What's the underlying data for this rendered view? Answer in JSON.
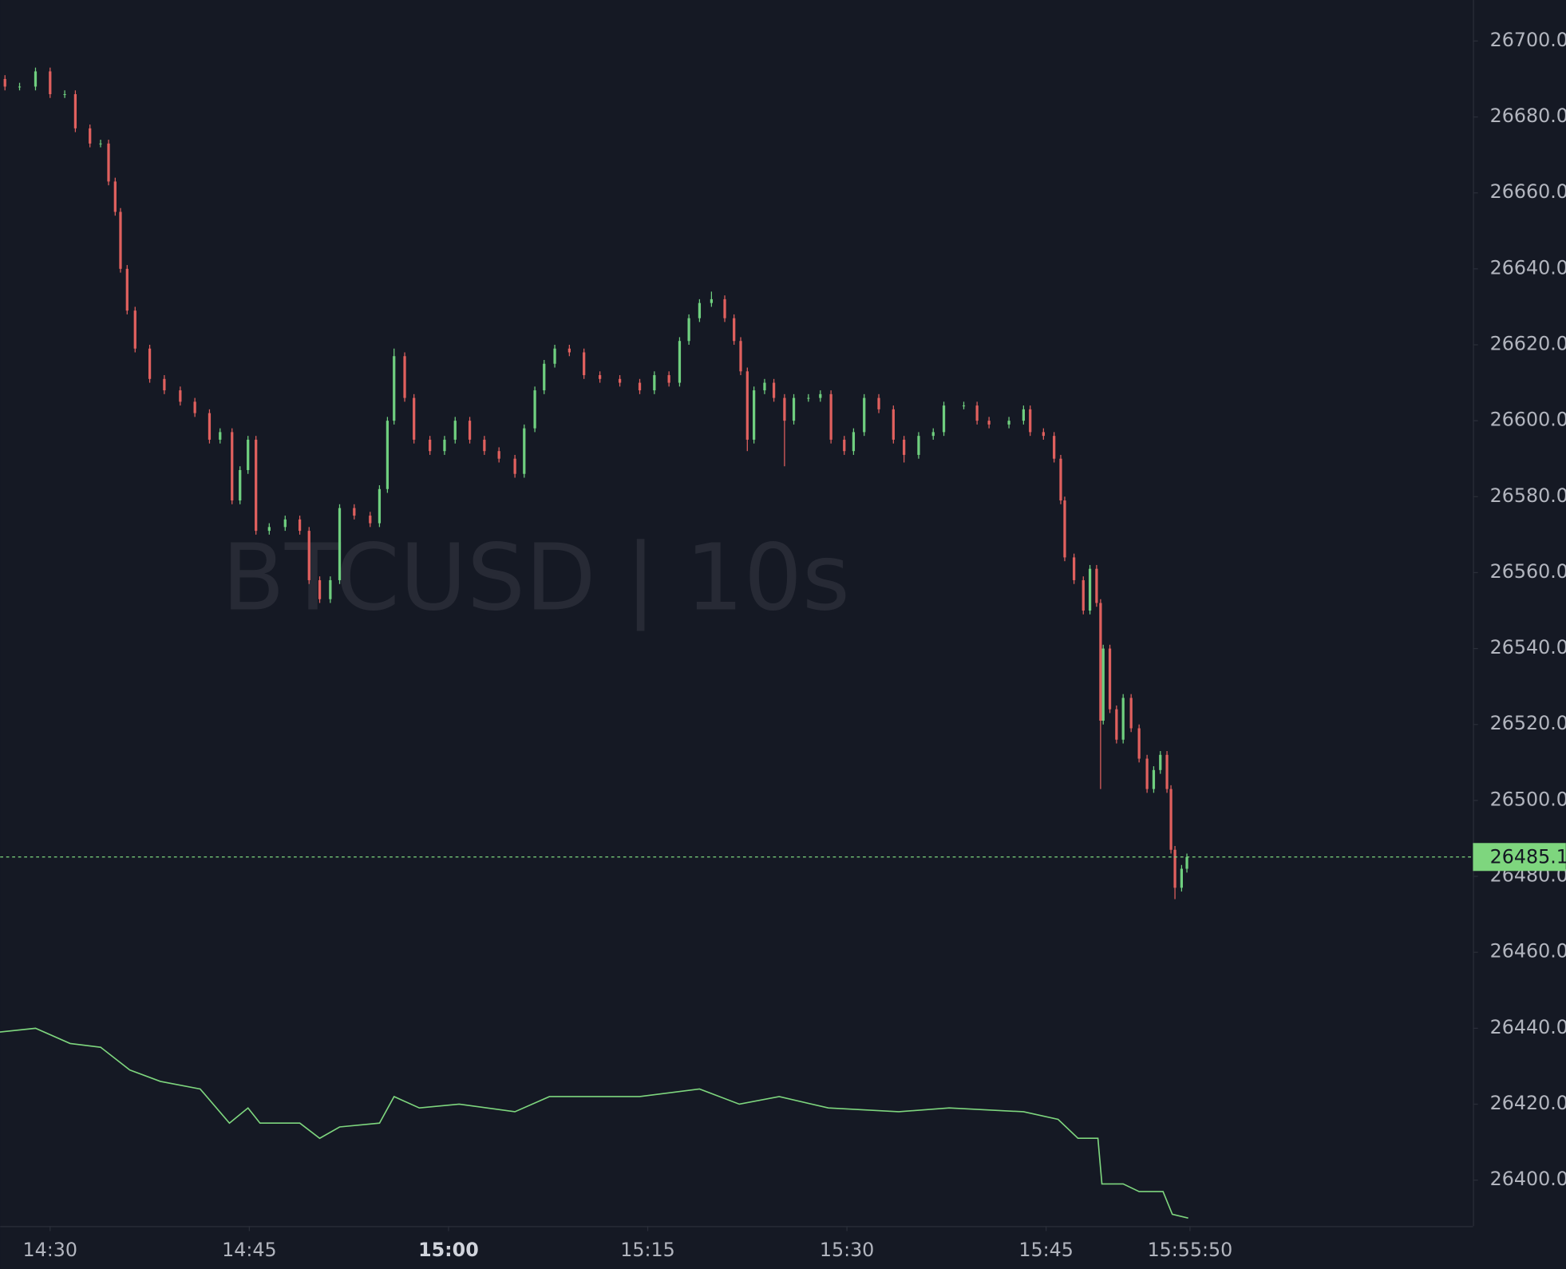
{
  "chart_data": {
    "type": "candlestick",
    "watermark": "BTCUSD | 10s",
    "up_color": "#6fcf7f",
    "down_color": "#e0605e",
    "x": [
      866.6,
      867.7,
      868.9,
      870.0,
      871.1,
      871.9,
      873.0,
      873.8,
      874.4,
      874.9,
      875.3,
      875.8,
      876.4,
      877.5,
      878.6,
      879.8,
      880.9,
      882.0,
      882.8,
      883.7,
      884.3,
      884.9,
      885.5,
      886.5,
      887.7,
      888.8,
      889.5,
      890.3,
      891.1,
      891.8,
      892.9,
      894.1,
      894.8,
      895.4,
      895.9,
      896.7,
      897.4,
      898.6,
      899.7,
      900.5,
      901.6,
      902.7,
      903.8,
      905.0,
      905.7,
      906.5,
      907.2,
      908.0,
      909.1,
      910.2,
      911.4,
      912.9,
      914.4,
      915.5,
      916.6,
      917.4,
      918.1,
      918.9,
      919.8,
      920.8,
      921.5,
      922.0,
      922.5,
      923.0,
      923.8,
      924.5,
      925.3,
      926.0,
      927.1,
      928.0,
      928.8,
      929.8,
      930.5,
      931.3,
      932.4,
      933.5,
      934.3,
      935.4,
      936.5,
      937.3,
      938.8,
      939.8,
      940.7,
      942.2,
      943.3,
      943.8,
      944.8,
      945.6,
      946.1,
      946.4,
      947.1,
      947.8,
      948.3,
      948.8,
      949.1,
      949.3,
      949.8,
      950.3,
      950.8,
      951.4,
      952.0,
      952.6,
      953.1,
      953.6,
      954.1,
      954.4,
      954.7,
      955.2,
      955.6
    ],
    "open": [
      26690,
      26688,
      26688,
      26692,
      26686,
      26686,
      26677,
      26673,
      26673,
      26663,
      26655,
      26640,
      26629,
      26619,
      26611,
      26608,
      26605,
      26602,
      26595,
      26597,
      26579,
      26587,
      26595,
      26571,
      26572,
      26574,
      26571,
      26558,
      26553,
      26558,
      26577,
      26575,
      26573,
      26582,
      26600,
      26617,
      26606,
      26595,
      26592,
      26595,
      26600,
      26595,
      26592,
      26590,
      26586,
      26598,
      26608,
      26615,
      26619,
      26618,
      26612,
      26611,
      26610,
      26608,
      26612,
      26610,
      26621,
      26627,
      26631,
      26632,
      26627,
      26621,
      26613,
      26595,
      26608,
      26610,
      26606,
      26600,
      26606,
      26606,
      26607,
      26595,
      26592,
      26597,
      26606,
      26603,
      26595,
      26591,
      26596,
      26597,
      26604,
      26604,
      26600,
      26599,
      26600,
      26603,
      26597,
      26596,
      26590,
      26579,
      26564,
      26558,
      26550,
      26561,
      26552,
      26521,
      26540,
      26524,
      26516,
      26527,
      26519,
      26511,
      26503,
      26508,
      26512,
      26503,
      26487,
      26477,
      26482
    ],
    "high": [
      26691,
      26689,
      26693,
      26693,
      26687,
      26687,
      26678,
      26674,
      26674,
      26664,
      26656,
      26641,
      26630,
      26620,
      26612,
      26609,
      26606,
      26603,
      26598,
      26598,
      26588,
      26596,
      26596,
      26573,
      26575,
      26575,
      26572,
      26559,
      26559,
      26578,
      26578,
      26576,
      26583,
      26601,
      26619,
      26618,
      26607,
      26596,
      26596,
      26601,
      26601,
      26596,
      26593,
      26591,
      26599,
      26609,
      26616,
      26620,
      26620,
      26619,
      26613,
      26612,
      26611,
      26613,
      26613,
      26622,
      26628,
      26632,
      26634,
      26633,
      26628,
      26622,
      26614,
      26609,
      26611,
      26611,
      26607,
      26607,
      26607,
      26608,
      26608,
      26596,
      26598,
      26607,
      26607,
      26604,
      26596,
      26597,
      26598,
      26605,
      26605,
      26605,
      26601,
      26601,
      26604,
      26604,
      26598,
      26597,
      26591,
      26580,
      26565,
      26559,
      26562,
      26562,
      26553,
      26541,
      26541,
      26525,
      26528,
      26528,
      26520,
      26512,
      26509,
      26513,
      26513,
      26504,
      26488,
      26483,
      26486
    ],
    "low": [
      26687,
      26687,
      26687,
      26685,
      26685,
      26676,
      26672,
      26672,
      26662,
      26654,
      26639,
      26628,
      26618,
      26610,
      26607,
      26604,
      26601,
      26594,
      26594,
      26578,
      26578,
      26586,
      26570,
      26570,
      26571,
      26570,
      26557,
      26552,
      26552,
      26557,
      26574,
      26572,
      26572,
      26581,
      26599,
      26605,
      26594,
      26591,
      26591,
      26594,
      26594,
      26591,
      26589,
      26585,
      26585,
      26597,
      26607,
      26614,
      26617,
      26611,
      26610,
      26609,
      26607,
      26607,
      26609,
      26609,
      26620,
      26626,
      26630,
      26626,
      26620,
      26612,
      26592,
      26594,
      26607,
      26605,
      26588,
      26599,
      26605,
      26605,
      26594,
      26591,
      26591,
      26596,
      26602,
      26594,
      26589,
      26590,
      26595,
      26596,
      26603,
      26599,
      26598,
      26598,
      26599,
      26596,
      26595,
      26589,
      26578,
      26563,
      26557,
      26549,
      26549,
      26551,
      26503,
      26520,
      26523,
      26515,
      26515,
      26518,
      26510,
      26502,
      26502,
      26507,
      26502,
      26486,
      26474,
      26476,
      26481
    ],
    "close": [
      26688,
      26688,
      26692,
      26686,
      26686,
      26677,
      26673,
      26673,
      26663,
      26655,
      26640,
      26629,
      26619,
      26611,
      26608,
      26605,
      26602,
      26595,
      26597,
      26579,
      26587,
      26595,
      26571,
      26572,
      26574,
      26571,
      26558,
      26553,
      26558,
      26577,
      26575,
      26573,
      26582,
      26600,
      26617,
      26606,
      26595,
      26592,
      26595,
      26600,
      26595,
      26592,
      26590,
      26586,
      26598,
      26608,
      26615,
      26619,
      26618,
      26612,
      26611,
      26610,
      26608,
      26612,
      26610,
      26621,
      26627,
      26631,
      26632,
      26627,
      26621,
      26613,
      26595,
      26608,
      26610,
      26606,
      26600,
      26606,
      26606,
      26607,
      26595,
      26592,
      26597,
      26606,
      26603,
      26595,
      26591,
      26596,
      26597,
      26604,
      26604,
      26600,
      26599,
      26600,
      26603,
      26597,
      26596,
      26590,
      26579,
      26564,
      26558,
      26550,
      26561,
      26552,
      26521,
      26540,
      26524,
      26516,
      26527,
      26519,
      26511,
      26503,
      26508,
      26512,
      26503,
      26487,
      26477,
      26482,
      26485.1
    ],
    "overlays": [
      {
        "type": "line",
        "color": "#7ed67e",
        "x": [
          866.2,
          868.9,
          871.5,
          873.8,
          876.0,
          878.3,
          881.3,
          883.5,
          884.9,
          885.8,
          888.8,
          890.3,
          891.8,
          894.8,
          895.9,
          897.8,
          900.8,
          905.0,
          907.6,
          914.4,
          918.9,
          921.9,
          924.9,
          928.6,
          933.9,
          937.7,
          943.3,
          945.9,
          947.4,
          948.9,
          949.2,
          950.8,
          952.0,
          953.8,
          954.5,
          955.7
        ],
        "values": [
          26439,
          26440,
          26436,
          26435,
          26429,
          26426,
          26424,
          26415,
          26419,
          26415,
          26415,
          26411,
          26414,
          26415,
          26422,
          26419,
          26420,
          26418,
          26422,
          26422,
          26424,
          26420,
          26422,
          26419,
          26418,
          26419,
          26418,
          26416,
          26411,
          26411,
          26399,
          26399,
          26397,
          26397,
          26391,
          26390
        ]
      }
    ],
    "last_price": {
      "value": 26485.1,
      "color": "#7ed67e"
    },
    "xlim": [
      866.24,
      977.14
    ],
    "xticks": [
      {
        "value": 870,
        "label": "14:30"
      },
      {
        "value": 885,
        "label": "14:45"
      },
      {
        "value": 900,
        "label": "15:00",
        "bold": true
      },
      {
        "value": 915,
        "label": "15:15"
      },
      {
        "value": 930,
        "label": "15:30"
      },
      {
        "value": 945,
        "label": "15:45"
      },
      {
        "value": 955.833,
        "label": "15:55:50"
      }
    ],
    "ylim": [
      26387.9,
      26710.8
    ],
    "yticks": [
      {
        "value": 26400,
        "label": "26400.0"
      },
      {
        "value": 26420,
        "label": "26420.0"
      },
      {
        "value": 26440,
        "label": "26440.0"
      },
      {
        "value": 26460,
        "label": "26460.0"
      },
      {
        "value": 26480,
        "label": "26480.0"
      },
      {
        "value": 26500,
        "label": "26500.0"
      },
      {
        "value": 26520,
        "label": "26520.0"
      },
      {
        "value": 26540,
        "label": "26540.0"
      },
      {
        "value": 26560,
        "label": "26560.0"
      },
      {
        "value": 26580,
        "label": "26580.0"
      },
      {
        "value": 26600,
        "label": "26600.0"
      },
      {
        "value": 26620,
        "label": "26620.0"
      },
      {
        "value": 26640,
        "label": "26640.0"
      },
      {
        "value": 26660,
        "label": "26660.0"
      },
      {
        "value": 26680,
        "label": "26680.0"
      },
      {
        "value": 26700,
        "label": "26700.0"
      }
    ]
  }
}
